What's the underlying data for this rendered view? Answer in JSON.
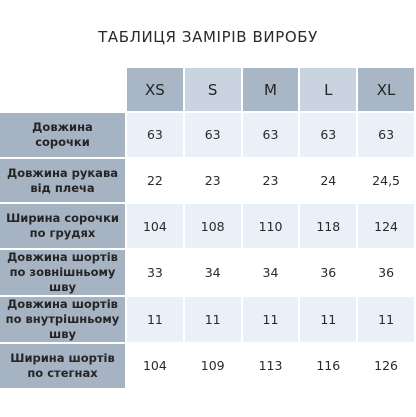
{
  "title": "ТАБЛИЦЯ ЗАМІРІВ ВИРОБУ",
  "sizes": [
    "XS",
    "S",
    "M",
    "L",
    "XL"
  ],
  "rows": [
    {
      "label": [
        "Довжина сорочки"
      ],
      "values": [
        "63",
        "63",
        "63",
        "63",
        "63"
      ]
    },
    {
      "label": [
        "Довжина рукава",
        "від плеча"
      ],
      "values": [
        "22",
        "23",
        "23",
        "24",
        "24,5"
      ]
    },
    {
      "label": [
        "Ширина сорочки",
        "по грудях"
      ],
      "values": [
        "104",
        "108",
        "110",
        "118",
        "124"
      ]
    },
    {
      "label": [
        "Довжина шортів",
        "по зовнішньому шву"
      ],
      "values": [
        "33",
        "34",
        "34",
        "36",
        "36"
      ]
    },
    {
      "label": [
        "Довжина шортів",
        "по внутрішньому шву"
      ],
      "values": [
        "11",
        "11",
        "11",
        "11",
        "11"
      ]
    },
    {
      "label": [
        "Ширина шортів",
        "по стегнах"
      ],
      "values": [
        "104",
        "109",
        "113",
        "116",
        "126"
      ]
    }
  ],
  "colors": {
    "header_dark": "#a9b6c6",
    "header_light": "#c9d4e0",
    "row_label": "#a6b3c3",
    "row_alt": "#e9f0f7"
  }
}
